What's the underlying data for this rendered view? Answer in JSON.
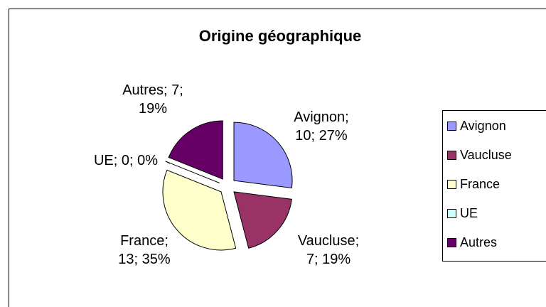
{
  "chart_data": {
    "type": "pie",
    "title": "Origine géographique",
    "categories": [
      "Avignon",
      "Vaucluse",
      "France",
      "UE",
      "Autres"
    ],
    "values": [
      10,
      7,
      13,
      0,
      7
    ],
    "value_labels": [
      "Avignon;\n10; 27%",
      "Vaucluse;\n7; 19%",
      "France;\n13; 35%",
      "UE; 0; 0%",
      "Autres; 7;\n19%"
    ],
    "colors": [
      "#9999ff",
      "#993366",
      "#ffffcc",
      "#ccffff",
      "#660066"
    ],
    "legend": "right"
  }
}
